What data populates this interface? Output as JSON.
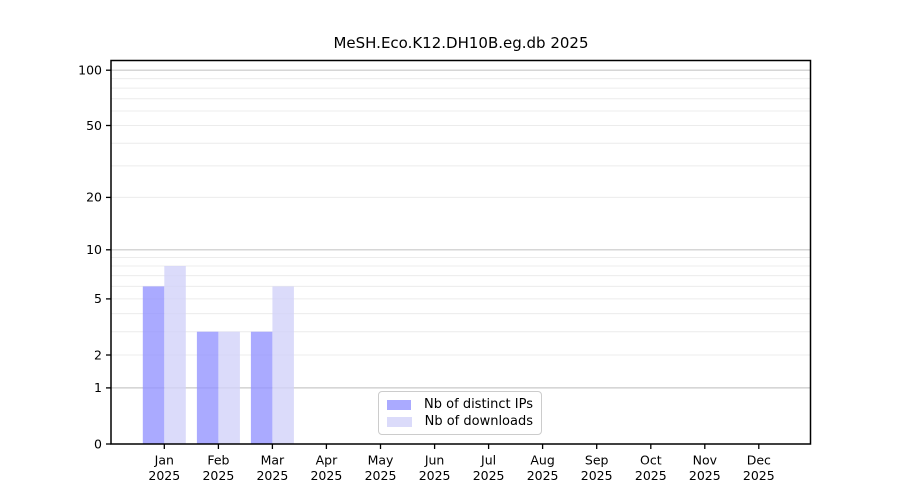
{
  "chart_data": {
    "type": "bar",
    "title": "MeSH.Eco.K12.DH10B.eg.db 2025",
    "categories": [
      "Jan",
      "Feb",
      "Mar",
      "Apr",
      "May",
      "Jun",
      "Jul",
      "Aug",
      "Sep",
      "Oct",
      "Nov",
      "Dec"
    ],
    "x_tick_second_line": "2025",
    "series": [
      {
        "name": "Nb of distinct IPs",
        "color": "#aaaaff",
        "values": [
          6,
          3,
          3,
          0,
          0,
          0,
          0,
          0,
          0,
          0,
          0,
          0
        ]
      },
      {
        "name": "Nb of downloads",
        "color": "#dbdbfa",
        "values": [
          8,
          3,
          6,
          0,
          0,
          0,
          0,
          0,
          0,
          0,
          0,
          0
        ]
      }
    ],
    "y_axis": {
      "scale": "log10(1+x)",
      "tick_values": [
        0,
        1,
        2,
        5,
        10,
        20,
        50,
        100
      ],
      "grid_values": [
        1,
        2,
        3,
        4,
        5,
        6,
        7,
        8,
        9,
        10,
        20,
        30,
        40,
        50,
        60,
        70,
        80,
        90,
        100
      ],
      "decade_values": [
        1,
        10,
        100
      ],
      "ylim": [
        0,
        110
      ]
    },
    "grid": "horizontal",
    "legend": {
      "position": "bottom-center",
      "items": [
        "Nb of distinct IPs",
        "Nb of downloads"
      ]
    },
    "colors": {
      "major_grid": "#c8c8c8",
      "minor_grid": "#ececec",
      "axis": "#000000"
    }
  }
}
